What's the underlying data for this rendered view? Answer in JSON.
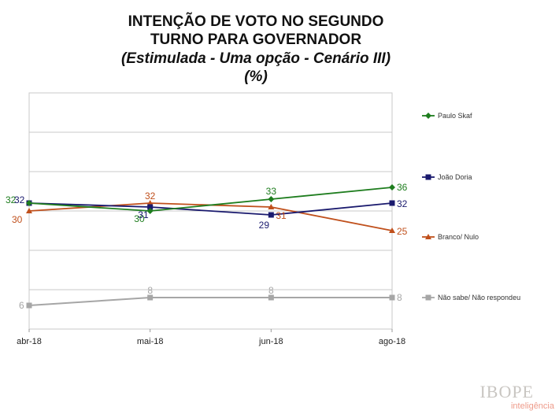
{
  "header": {
    "line1": "INTENÇÃO DE VOTO NO SEGUNDO",
    "line2": "TURNO PARA GOVERNADOR",
    "line3": "(Estimulada - Uma opção - Cenário III)",
    "line4": "(%)"
  },
  "chart_data": {
    "type": "line",
    "title": "INTENÇÃO DE VOTO NO SEGUNDO TURNO PARA GOVERNADOR (Estimulada - Uma opção - Cenário III) (%)",
    "categories": [
      "abr-18",
      "mai-18",
      "jun-18",
      "ago-18"
    ],
    "ylim": [
      0,
      60
    ],
    "grid": true,
    "legend_position": "right",
    "series": [
      {
        "name": "Paulo Skaf",
        "color": "#1e7d1e",
        "marker": "diamond",
        "values": [
          32,
          30,
          33,
          36
        ],
        "labels": [
          "32",
          "30",
          "33",
          "36"
        ]
      },
      {
        "name": "João Doria",
        "color": "#1a1a6e",
        "marker": "square",
        "values": [
          32,
          31,
          29,
          32
        ],
        "labels": [
          "32",
          "31",
          "29",
          "32"
        ]
      },
      {
        "name": "Branco/ Nulo",
        "color": "#c0501c",
        "marker": "triangle",
        "values": [
          30,
          32,
          31,
          25
        ],
        "labels": [
          "30",
          "32",
          "31",
          "25"
        ]
      },
      {
        "name": "Não sabe/ Não respondeu",
        "color": "#a6a6a6",
        "marker": "square",
        "values": [
          6,
          8,
          8,
          8
        ],
        "labels": [
          "6",
          "8",
          "8",
          "8"
        ]
      }
    ]
  },
  "branding": {
    "logo": "IBOPE",
    "sub": "inteligência"
  }
}
